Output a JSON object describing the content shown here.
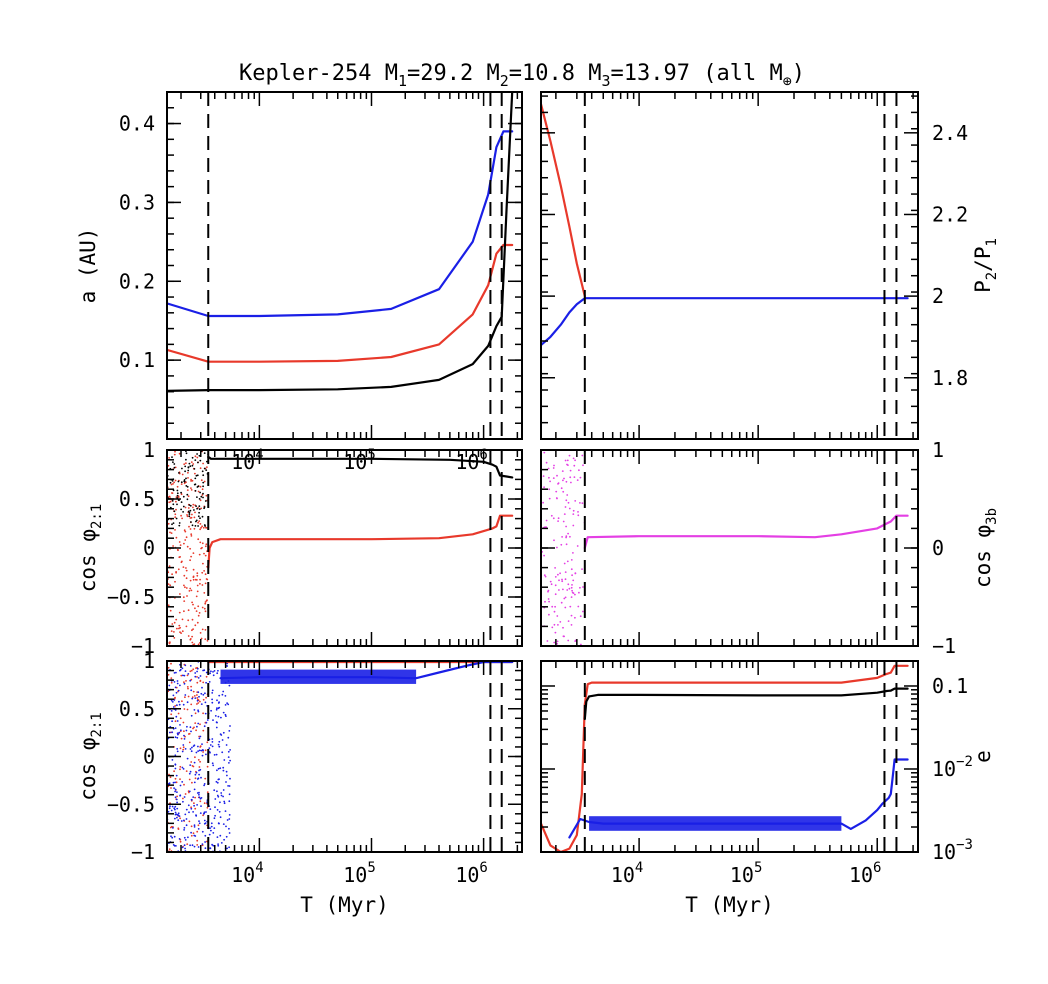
{
  "figure": {
    "title_parts": {
      "system": "Kepler-254",
      "m1_label": "M",
      "m1_sub": "1",
      "m1_val": "=29.2",
      "m2_label": "M",
      "m2_sub": "2",
      "m2_val": "=10.8",
      "m3_label": "M",
      "m3_sub": "3",
      "m3_val": "=13.97",
      "units_pre": "(all M",
      "units_sub": "⊕",
      "units_post": ")"
    },
    "xlabel": "T (Myr)",
    "colors": {
      "black": "#000000",
      "red": "#e8392b",
      "blue": "#1a1fe6",
      "magenta": "#e43fe4"
    }
  },
  "chart_data": [
    {
      "id": "top-left",
      "type": "line",
      "xscale": "log",
      "xlim": [
        1500,
        2200000
      ],
      "ylim": [
        0.0,
        0.44
      ],
      "xticks": [
        10000,
        100000,
        1000000
      ],
      "xtick_labels": [
        {
          "base": "10",
          "exp": "4"
        },
        {
          "base": "10",
          "exp": "5"
        },
        {
          "base": "10",
          "exp": "6"
        }
      ],
      "yticks": [
        0.1,
        0.2,
        0.3,
        0.4
      ],
      "ytick_labels": [
        "0.1",
        "0.2",
        "0.3",
        "0.4"
      ],
      "ylabel": "a (AU)",
      "vlines": [
        3500,
        1150000,
        1450000
      ],
      "series": [
        {
          "name": "a3",
          "color": "blue",
          "x": [
            1500,
            3500,
            10000,
            50000,
            150000,
            400000,
            800000,
            1100000,
            1300000,
            1500000,
            1800000
          ],
          "y": [
            0.172,
            0.156,
            0.156,
            0.158,
            0.165,
            0.19,
            0.25,
            0.31,
            0.37,
            0.39,
            0.39
          ]
        },
        {
          "name": "a2",
          "color": "red",
          "x": [
            1500,
            3500,
            10000,
            50000,
            150000,
            400000,
            800000,
            1100000,
            1300000,
            1500000,
            1800000
          ],
          "y": [
            0.113,
            0.098,
            0.098,
            0.099,
            0.104,
            0.12,
            0.158,
            0.195,
            0.235,
            0.246,
            0.246
          ]
        },
        {
          "name": "a1",
          "color": "black",
          "x": [
            1500,
            3500,
            10000,
            50000,
            150000,
            400000,
            800000,
            1100000,
            1300000,
            1450000,
            1600000,
            1800000
          ],
          "y": [
            0.061,
            0.062,
            0.062,
            0.063,
            0.066,
            0.075,
            0.095,
            0.118,
            0.143,
            0.155,
            0.29,
            0.44
          ]
        }
      ]
    },
    {
      "id": "top-right",
      "type": "line",
      "xscale": "log",
      "xlim": [
        1500,
        2200000
      ],
      "ylim": [
        1.65,
        2.5
      ],
      "xticks": [
        10000,
        100000,
        1000000
      ],
      "xtick_labels": [],
      "yticks": [
        1.8,
        2.0,
        2.2,
        2.4
      ],
      "ytick_labels": [
        "1.8",
        "2",
        "2.2",
        "2.4"
      ],
      "ylabel_right": {
        "base": "P",
        "sub2": "2",
        "mid": "/P",
        "sub1": "1"
      },
      "vlines": [
        3500,
        1150000,
        1450000
      ],
      "series": [
        {
          "name": "P3/P2",
          "color": "red",
          "x": [
            1500,
            1800,
            2200,
            2600,
            3000,
            3300,
            3500
          ],
          "y": [
            2.47,
            2.38,
            2.27,
            2.17,
            2.08,
            2.03,
            2.0
          ]
        },
        {
          "name": "P2/P1",
          "color": "blue",
          "x": [
            1500,
            1800,
            2200,
            2600,
            3000,
            3500,
            10000,
            100000,
            1000000,
            1800000
          ],
          "y": [
            1.88,
            1.9,
            1.93,
            1.96,
            1.98,
            1.995,
            1.995,
            1.995,
            1.995,
            1.995
          ]
        }
      ]
    },
    {
      "id": "mid-left",
      "type": "line",
      "xscale": "log",
      "xlim": [
        1500,
        2200000
      ],
      "ylim": [
        -1.0,
        1.0
      ],
      "xticks": [
        10000,
        100000,
        1000000
      ],
      "xtick_labels": [],
      "yticks": [
        -1,
        -0.5,
        0,
        0.5,
        1
      ],
      "ytick_labels": [
        "−1",
        "−0.5",
        "0",
        "0.5",
        "1"
      ],
      "ylabel": {
        "pre": "cos φ",
        "sub": "2:1"
      },
      "vlines": [
        3500,
        1150000,
        1450000
      ],
      "series": [
        {
          "name": "cos phi res1",
          "color": "black",
          "x": [
            3500,
            3700,
            10000,
            100000,
            500000,
            1000000,
            1200000,
            1300000,
            1400000,
            1800000
          ],
          "y": [
            0.93,
            0.91,
            0.91,
            0.91,
            0.9,
            0.88,
            0.85,
            0.83,
            0.74,
            0.72
          ]
        },
        {
          "name": "cos phi res2",
          "color": "red",
          "x": [
            3500,
            3600,
            3800,
            4500,
            10000,
            100000,
            400000,
            800000,
            1200000,
            1300000,
            1400000,
            1800000
          ],
          "y": [
            -0.2,
            0.0,
            0.06,
            0.09,
            0.09,
            0.09,
            0.1,
            0.14,
            0.2,
            0.22,
            0.33,
            0.33
          ]
        }
      ]
    },
    {
      "id": "mid-right",
      "type": "line",
      "xscale": "log",
      "xlim": [
        1500,
        2200000
      ],
      "ylim": [
        -1.0,
        1.0
      ],
      "xticks": [
        10000,
        100000,
        1000000
      ],
      "xtick_labels": [],
      "yticks": [
        -1,
        0,
        1
      ],
      "ytick_labels": [
        "−1",
        "0",
        "1"
      ],
      "ylabel_right": {
        "pre": "cos φ",
        "sub": "3b"
      },
      "vlines": [
        3500,
        1150000,
        1450000
      ],
      "series": [
        {
          "name": "cos phi 3b",
          "color": "magenta",
          "x": [
            3500,
            3700,
            10000,
            100000,
            300000,
            500000,
            1000000,
            1200000,
            1300000,
            1450000,
            1800000
          ],
          "y": [
            0.0,
            0.11,
            0.12,
            0.12,
            0.11,
            0.14,
            0.2,
            0.25,
            0.27,
            0.33,
            0.33
          ]
        }
      ]
    },
    {
      "id": "bottom-left",
      "type": "line",
      "xscale": "log",
      "xlim": [
        1500,
        2200000
      ],
      "ylim": [
        -1.0,
        1.0
      ],
      "xticks": [
        10000,
        100000,
        1000000
      ],
      "xtick_labels": [
        {
          "base": "10",
          "exp": "4"
        },
        {
          "base": "10",
          "exp": "5"
        },
        {
          "base": "10",
          "exp": "6"
        }
      ],
      "yticks": [
        -1,
        -0.5,
        0,
        0.5,
        1
      ],
      "ytick_labels": [
        "−1",
        "−0.5",
        "0",
        "0.5",
        "1"
      ],
      "ylabel": {
        "pre": "cos φ",
        "sub": "2:1"
      },
      "vlines": [
        3500,
        1150000,
        1450000
      ],
      "series": [
        {
          "name": "cos phi res1 (bottom)",
          "color": "red",
          "x": [
            3500,
            10000,
            100000,
            1000000,
            1800000
          ],
          "y": [
            0.99,
            0.99,
            0.99,
            0.99,
            0.99
          ]
        },
        {
          "name": "cos phi res2 (bottom)",
          "color": "blue",
          "x": [
            4500,
            10000,
            100000,
            250000,
            400000,
            700000,
            1000000,
            1800000
          ],
          "y": [
            0.82,
            0.83,
            0.83,
            0.82,
            0.88,
            0.95,
            0.99,
            0.99
          ]
        }
      ]
    },
    {
      "id": "bottom-right",
      "type": "line",
      "xscale": "log",
      "yscale": "log",
      "xlim": [
        1500,
        2200000
      ],
      "ylim": [
        0.001,
        0.2
      ],
      "xticks": [
        10000,
        100000,
        1000000
      ],
      "xtick_labels": [
        {
          "base": "10",
          "exp": "4"
        },
        {
          "base": "10",
          "exp": "5"
        },
        {
          "base": "10",
          "exp": "6"
        }
      ],
      "yticks": [
        0.001,
        0.01,
        0.1
      ],
      "ytick_labels": [
        {
          "base": "10",
          "exp": "−3"
        },
        {
          "base": "10",
          "exp": "−2"
        },
        {
          "base": "0.1",
          "exp": ""
        }
      ],
      "ylabel_right": "e",
      "vlines": [
        3500,
        1150000,
        1450000
      ],
      "series": [
        {
          "name": "e2",
          "color": "red",
          "x": [
            1500,
            1800,
            2200,
            2600,
            3000,
            3300,
            3500,
            3700,
            4000,
            10000,
            100000,
            500000,
            1000000,
            1200000,
            1300000,
            1400000,
            1800000
          ],
          "y": [
            0.0022,
            0.0012,
            0.001,
            0.0011,
            0.0016,
            0.005,
            0.06,
            0.105,
            0.11,
            0.11,
            0.11,
            0.11,
            0.125,
            0.14,
            0.145,
            0.175,
            0.175
          ]
        },
        {
          "name": "e1",
          "color": "black",
          "x": [
            3500,
            3600,
            3800,
            4500,
            10000,
            100000,
            500000,
            1000000,
            1200000,
            1300000,
            1400000,
            1800000
          ],
          "y": [
            0.04,
            0.065,
            0.075,
            0.078,
            0.078,
            0.077,
            0.077,
            0.083,
            0.087,
            0.088,
            0.093,
            0.093
          ]
        },
        {
          "name": "e3",
          "color": "blue",
          "x": [
            2600,
            3200,
            3800,
            5000,
            10000,
            100000,
            500000,
            600000,
            800000,
            1000000,
            1100000,
            1250000,
            1300000,
            1350000,
            1400000,
            1800000
          ],
          "y": [
            0.0015,
            0.0025,
            0.0023,
            0.0022,
            0.0022,
            0.0022,
            0.0022,
            0.0019,
            0.0024,
            0.0032,
            0.0038,
            0.0045,
            0.005,
            0.008,
            0.013,
            0.013
          ]
        }
      ]
    }
  ]
}
